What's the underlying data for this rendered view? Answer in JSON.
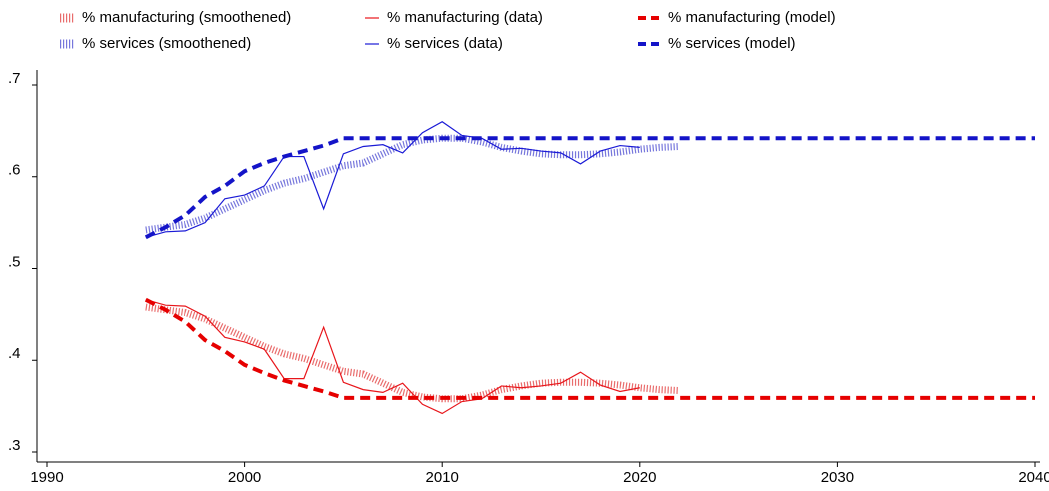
{
  "chart_data": {
    "type": "line",
    "xlim": [
      1990,
      2040
    ],
    "xticks": [
      1990,
      2000,
      2010,
      2020,
      2030,
      2040
    ],
    "ylim": [
      0.3,
      0.7
    ],
    "yticks": [
      {
        "value": 0.3,
        "label": ".3"
      },
      {
        "value": 0.4,
        "label": ".4"
      },
      {
        "value": 0.5,
        "label": ".5"
      },
      {
        "value": 0.6,
        "label": ".6"
      },
      {
        "value": 0.7,
        "label": ".7"
      }
    ],
    "series": [
      {
        "name": "% manufacturing (smoothened)",
        "color": "#e23b3b",
        "style": "dotted",
        "x": [
          1995,
          1996,
          1997,
          1998,
          1999,
          2000,
          2001,
          2002,
          2003,
          2004,
          2005,
          2006,
          2007,
          2008,
          2009,
          2010,
          2011,
          2012,
          2013,
          2014,
          2015,
          2016,
          2017,
          2018,
          2019,
          2020,
          2021,
          2022
        ],
        "values": [
          0.458,
          0.455,
          0.452,
          0.445,
          0.435,
          0.425,
          0.415,
          0.407,
          0.402,
          0.395,
          0.388,
          0.385,
          0.375,
          0.365,
          0.36,
          0.358,
          0.358,
          0.362,
          0.368,
          0.372,
          0.375,
          0.376,
          0.376,
          0.375,
          0.373,
          0.37,
          0.368,
          0.367
        ]
      },
      {
        "name": "% manufacturing (data)",
        "color": "#e8161b",
        "style": "solid",
        "x": [
          1995,
          1996,
          1997,
          1998,
          1999,
          2000,
          2001,
          2002,
          2003,
          2004,
          2005,
          2006,
          2007,
          2008,
          2009,
          2010,
          2011,
          2012,
          2013,
          2014,
          2015,
          2016,
          2017,
          2018,
          2019,
          2020
        ],
        "values": [
          0.466,
          0.46,
          0.459,
          0.448,
          0.425,
          0.42,
          0.412,
          0.38,
          0.38,
          0.436,
          0.376,
          0.368,
          0.365,
          0.375,
          0.352,
          0.342,
          0.355,
          0.358,
          0.372,
          0.37,
          0.372,
          0.375,
          0.387,
          0.373,
          0.366,
          0.37
        ]
      },
      {
        "name": "% manufacturing (model)",
        "color": "#e60000",
        "style": "dashed",
        "x": [
          1995,
          1996,
          1997,
          1998,
          1999,
          2000,
          2001,
          2002,
          2003,
          2004,
          2005,
          2040
        ],
        "values": [
          0.466,
          0.455,
          0.442,
          0.422,
          0.41,
          0.395,
          0.386,
          0.378,
          0.372,
          0.366,
          0.359,
          0.359
        ]
      },
      {
        "name": "% services (smoothened)",
        "color": "#4a4ad0",
        "style": "dotted",
        "x": [
          1995,
          1996,
          1997,
          1998,
          1999,
          2000,
          2001,
          2002,
          2003,
          2004,
          2005,
          2006,
          2007,
          2008,
          2009,
          2010,
          2011,
          2012,
          2013,
          2014,
          2015,
          2016,
          2017,
          2018,
          2019,
          2020,
          2021,
          2022
        ],
        "values": [
          0.542,
          0.545,
          0.548,
          0.555,
          0.565,
          0.575,
          0.585,
          0.593,
          0.598,
          0.605,
          0.612,
          0.615,
          0.625,
          0.635,
          0.64,
          0.642,
          0.642,
          0.638,
          0.632,
          0.628,
          0.625,
          0.624,
          0.624,
          0.625,
          0.627,
          0.63,
          0.632,
          0.633
        ]
      },
      {
        "name": "% services (data)",
        "color": "#1a1ad6",
        "style": "solid",
        "x": [
          1995,
          1996,
          1997,
          1998,
          1999,
          2000,
          2001,
          2002,
          2003,
          2004,
          2005,
          2006,
          2007,
          2008,
          2009,
          2010,
          2011,
          2012,
          2013,
          2014,
          2015,
          2016,
          2017,
          2018,
          2019,
          2020
        ],
        "values": [
          0.534,
          0.54,
          0.541,
          0.55,
          0.576,
          0.58,
          0.59,
          0.622,
          0.622,
          0.565,
          0.625,
          0.633,
          0.635,
          0.626,
          0.648,
          0.66,
          0.645,
          0.642,
          0.63,
          0.631,
          0.628,
          0.626,
          0.614,
          0.628,
          0.634,
          0.632
        ]
      },
      {
        "name": "% services (model)",
        "color": "#1414c8",
        "style": "dashed",
        "x": [
          1995,
          1996,
          1997,
          1998,
          1999,
          2000,
          2001,
          2002,
          2003,
          2004,
          2005,
          2040
        ],
        "values": [
          0.534,
          0.545,
          0.558,
          0.578,
          0.59,
          0.606,
          0.615,
          0.622,
          0.628,
          0.634,
          0.642,
          0.642
        ]
      }
    ]
  }
}
